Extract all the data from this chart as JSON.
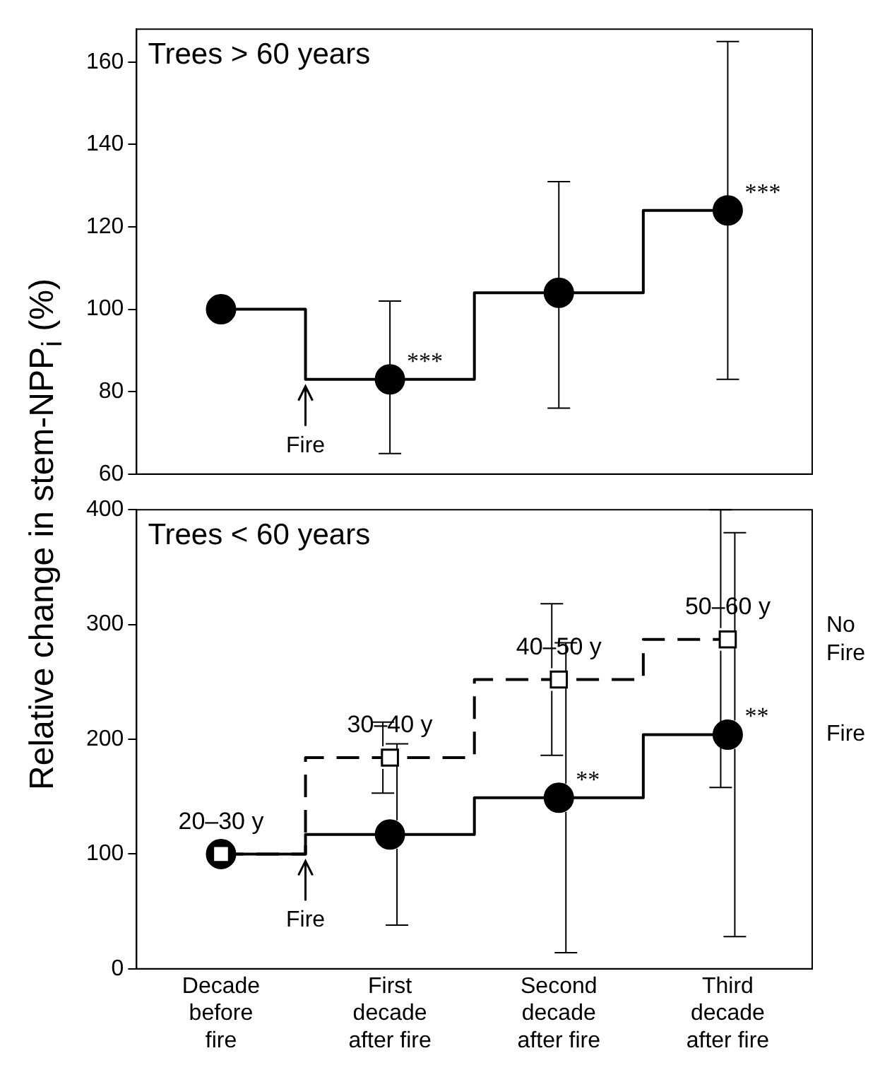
{
  "chart_data": [
    {
      "type": "step",
      "title": "Trees > 60 years",
      "ylabel": "Relative change in stem-NPP$_{i}$ (%)",
      "categories": [
        "Decade before fire",
        "First decade after fire",
        "Second decade after fire",
        "Third decade after fire"
      ],
      "series": [
        {
          "color": "#000000",
          "marker": "circle",
          "values": [
            100,
            83,
            104,
            124
          ],
          "errors": [
            null,
            [
              65,
              102
            ],
            [
              76,
              131
            ],
            [
              83,
              165
            ]
          ]
        }
      ],
      "ylim": [
        60,
        168
      ],
      "yticks": [
        60,
        80,
        100,
        120,
        140,
        160
      ],
      "tick_labels": "y",
      "grid": false,
      "legend": false,
      "annotations": [
        {
          "text": "Fire",
          "y": 83
        },
        {
          "text": "***",
          "x": "First decade after fire",
          "y": 83
        },
        {
          "text": "***",
          "x": "Third decade after fire",
          "y": 124
        }
      ]
    },
    {
      "type": "step",
      "title": "Trees < 60 years",
      "categories": [
        "Decade before fire",
        "First decade after fire",
        "Second decade after fire",
        "Third decade after fire"
      ],
      "series": [
        {
          "name": "No Fire",
          "color": "#000000",
          "marker": "square",
          "line_style": "dashed",
          "values": [
            100,
            184,
            252,
            287
          ],
          "errors": [
            null,
            [
              153,
              215
            ],
            [
              186,
              318
            ],
            [
              158,
              400
            ]
          ]
        },
        {
          "name": "Fire",
          "color": "#000000",
          "marker": "circle",
          "line_style": "solid",
          "values": [
            100,
            117,
            149,
            204
          ],
          "errors": [
            null,
            [
              38,
              196
            ],
            [
              14,
              284
            ],
            [
              28,
              380
            ]
          ]
        }
      ],
      "ylim": [
        0,
        400
      ],
      "yticks": [
        0,
        100,
        200,
        300,
        400
      ],
      "grid": false,
      "legend": false,
      "annotations": [
        {
          "text": "Fire",
          "y": 100
        },
        {
          "text": "20–30 y",
          "x": "Decade before fire",
          "y": 100
        },
        {
          "text": "30–40 y",
          "x": "First decade after fire",
          "y": 184
        },
        {
          "text": "40–50 y",
          "x": "Second decade after fire",
          "y": 252
        },
        {
          "text": "50–60 y",
          "x": "Third decade after fire",
          "y": 287
        },
        {
          "text": "**",
          "x": "Second decade after fire",
          "y": 149
        },
        {
          "text": "**",
          "x": "Third decade after fire",
          "y": 204
        }
      ]
    }
  ]
}
